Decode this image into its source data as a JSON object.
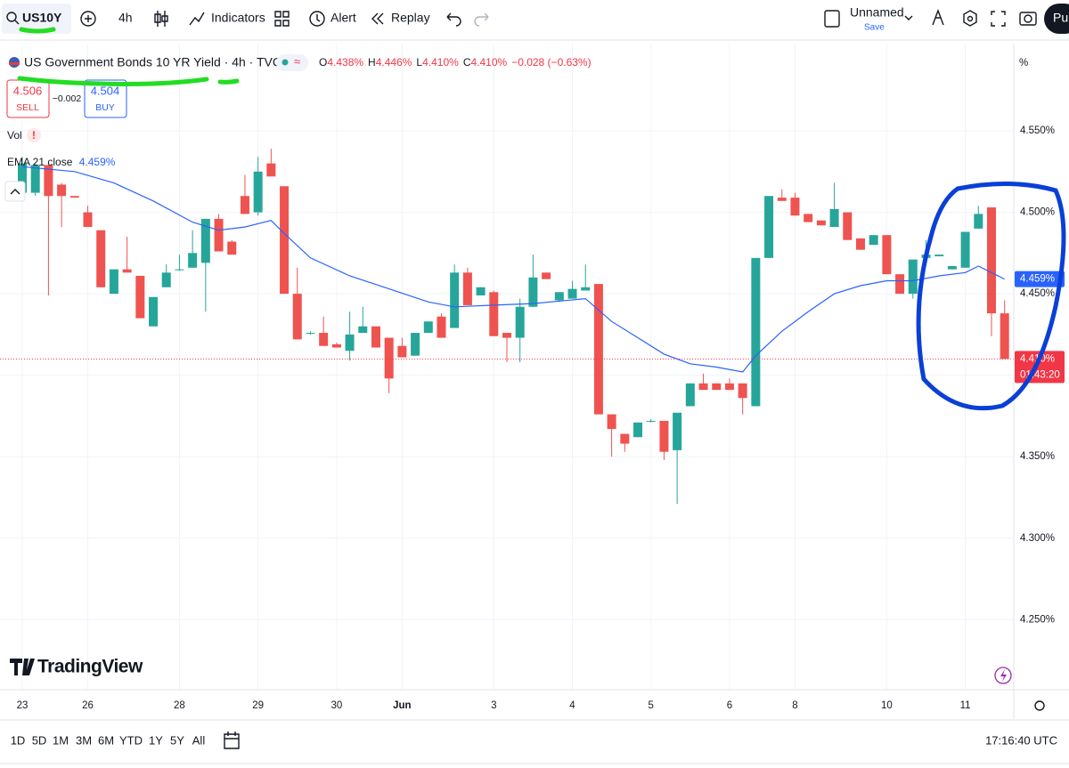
{
  "toolbar": {
    "symbol": "US10Y",
    "interval": "4h",
    "indicators": "Indicators",
    "alert": "Alert",
    "replay": "Replay",
    "layout": "Unnamed",
    "save": "Save",
    "publish": "Pu"
  },
  "legend": {
    "title": "US Government Bonds 10 YR Yield · 4h · TVC",
    "ohlc": [
      {
        "key": "O",
        "value": "4.438%"
      },
      {
        "key": "H",
        "value": "4.446%"
      },
      {
        "key": "L",
        "value": "4.410%"
      },
      {
        "key": "C",
        "value": "4.410%"
      }
    ],
    "change": "−0.028 (−0.63%)",
    "sell_price": "4.506",
    "sell": "SELL",
    "spread": "−0.002",
    "buy_price": "4.504",
    "buy": "BUY",
    "volume": "Vol"
  },
  "axis_unit": "%",
  "logo": "TradingView",
  "ranges": [
    "1D",
    "5D",
    "1M",
    "3M",
    "6M",
    "YTD",
    "1Y",
    "5Y",
    "All"
  ],
  "clock": "17:16:40 UTC",
  "chart_data": {
    "type": "candlestick",
    "up_color": "#26a69a",
    "down_color": "#ef5350",
    "open": [
      4.512,
      4.512,
      4.529,
      4.517,
      4.51,
      4.5,
      4.489,
      4.45,
      4.465,
      4.461,
      4.43,
      4.454,
      4.465,
      4.466,
      4.469,
      4.496,
      4.482,
      4.51,
      4.5,
      4.53,
      4.516,
      4.45,
      4.426,
      4.426,
      4.419,
      4.415,
      4.426,
      4.43,
      4.423,
      4.418,
      4.412,
      4.426,
      4.436,
      4.429,
      4.463,
      4.449,
      4.451,
      4.426,
      4.423,
      4.442,
      4.463,
      4.446,
      4.447,
      4.452,
      4.456,
      4.376,
      4.364,
      4.362,
      4.372,
      4.372,
      4.354,
      4.381,
      4.395,
      4.395,
      4.395,
      4.395,
      4.381,
      4.472,
      4.509,
      4.509,
      4.499,
      4.495,
      4.491,
      4.5,
      4.484,
      4.48,
      4.486,
      4.462,
      4.45,
      4.472,
      4.473,
      4.465,
      4.466,
      4.49,
      4.503,
      4.438
    ],
    "high": [
      4.534,
      4.53,
      4.53,
      4.518,
      4.51,
      4.504,
      4.489,
      4.465,
      4.485,
      4.461,
      4.448,
      4.468,
      4.474,
      4.489,
      4.496,
      4.499,
      4.483,
      4.523,
      4.534,
      4.539,
      4.516,
      4.466,
      4.427,
      4.436,
      4.42,
      4.439,
      4.442,
      4.43,
      4.423,
      4.423,
      4.426,
      4.433,
      4.438,
      4.468,
      4.466,
      4.454,
      4.452,
      4.426,
      4.447,
      4.474,
      4.463,
      4.451,
      4.458,
      4.468,
      4.456,
      4.376,
      4.364,
      4.371,
      4.373,
      4.372,
      4.377,
      4.395,
      4.401,
      4.395,
      4.398,
      4.395,
      4.472,
      4.51,
      4.514,
      4.512,
      4.499,
      4.495,
      4.518,
      4.5,
      4.484,
      4.486,
      4.486,
      4.462,
      4.471,
      4.483,
      4.474,
      4.467,
      4.488,
      4.504,
      4.503,
      4.446
    ],
    "low": [
      4.507,
      4.51,
      4.449,
      4.491,
      4.509,
      4.491,
      4.454,
      4.45,
      4.463,
      4.435,
      4.43,
      4.454,
      4.464,
      4.466,
      4.439,
      4.476,
      4.474,
      4.499,
      4.498,
      4.522,
      4.45,
      4.422,
      4.425,
      4.418,
      4.417,
      4.409,
      4.426,
      4.417,
      4.389,
      4.411,
      4.412,
      4.426,
      4.423,
      4.429,
      4.443,
      4.449,
      4.424,
      4.408,
      4.408,
      4.442,
      4.459,
      4.445,
      4.447,
      4.452,
      4.376,
      4.35,
      4.353,
      4.362,
      4.371,
      4.348,
      4.321,
      4.381,
      4.391,
      4.391,
      4.391,
      4.376,
      4.381,
      4.472,
      4.507,
      4.498,
      4.494,
      4.492,
      4.491,
      4.483,
      4.477,
      4.48,
      4.462,
      4.45,
      4.447,
      4.472,
      4.473,
      4.465,
      4.466,
      4.49,
      4.424,
      4.41
    ],
    "close": [
      4.53,
      4.529,
      4.51,
      4.51,
      4.509,
      4.491,
      4.454,
      4.465,
      4.463,
      4.435,
      4.448,
      4.463,
      4.465,
      4.475,
      4.496,
      4.476,
      4.474,
      4.499,
      4.525,
      4.522,
      4.45,
      4.422,
      4.426,
      4.418,
      4.417,
      4.425,
      4.43,
      4.417,
      4.398,
      4.411,
      4.426,
      4.433,
      4.423,
      4.463,
      4.443,
      4.454,
      4.424,
      4.423,
      4.442,
      4.46,
      4.459,
      4.451,
      4.453,
      4.454,
      4.376,
      4.367,
      4.358,
      4.371,
      4.372,
      4.353,
      4.377,
      4.395,
      4.391,
      4.391,
      4.391,
      4.386,
      4.472,
      4.51,
      4.507,
      4.498,
      4.494,
      4.492,
      4.502,
      4.483,
      4.477,
      4.486,
      4.462,
      4.45,
      4.471,
      4.474,
      4.474,
      4.467,
      4.488,
      4.499,
      4.438,
      4.41
    ],
    "series": [
      {
        "name": "EMA 21 close",
        "color": "#2962ff",
        "x": [
          0,
          4,
          7,
          10,
          13,
          15,
          17,
          19,
          20,
          22,
          25,
          28,
          31,
          33,
          36,
          39,
          43,
          45,
          47,
          49,
          51,
          53,
          55,
          56,
          58,
          60,
          62,
          64,
          66,
          68,
          70,
          72,
          73,
          74,
          75
        ],
        "values": [
          4.528,
          4.525,
          4.518,
          4.507,
          4.494,
          4.489,
          4.491,
          4.495,
          4.487,
          4.472,
          4.461,
          4.453,
          4.445,
          4.442,
          4.443,
          4.444,
          4.447,
          4.433,
          4.423,
          4.413,
          4.407,
          4.405,
          4.402,
          4.412,
          4.427,
          4.439,
          4.45,
          4.455,
          4.458,
          4.458,
          4.461,
          4.463,
          4.467,
          4.463,
          4.459
        ]
      }
    ],
    "price_labels": [
      {
        "value": 4.459,
        "label": "4.459%",
        "color": "#2962ff"
      },
      {
        "value": 4.41,
        "label": "4.410%",
        "color": "#f23645",
        "countdown": "01:43:20"
      }
    ],
    "xlim": [
      -1.7,
      75.7
    ],
    "xticks": [
      {
        "value": 0,
        "label": "23"
      },
      {
        "value": 5,
        "label": "26"
      },
      {
        "value": 12,
        "label": "28"
      },
      {
        "value": 18,
        "label": "29"
      },
      {
        "value": 24,
        "label": "30"
      },
      {
        "value": 29,
        "label": "Jun"
      },
      {
        "value": 36,
        "label": "3"
      },
      {
        "value": 42,
        "label": "4"
      },
      {
        "value": 48,
        "label": "5"
      },
      {
        "value": 54,
        "label": "6"
      },
      {
        "value": 59,
        "label": "8"
      },
      {
        "value": 66,
        "label": "10"
      },
      {
        "value": 72,
        "label": "11"
      }
    ],
    "ylim": [
      4.207,
      4.603
    ],
    "yticks": [
      {
        "value": 4.25,
        "label": "4.250%"
      },
      {
        "value": 4.3,
        "label": "4.300%"
      },
      {
        "value": 4.35,
        "label": "4.350%"
      },
      {
        "value": 4.4,
        "label": "4.400%"
      },
      {
        "value": 4.45,
        "label": "4.450%"
      },
      {
        "value": 4.5,
        "label": "4.500%"
      },
      {
        "value": 4.55,
        "label": "4.550%"
      }
    ],
    "grid": true
  }
}
